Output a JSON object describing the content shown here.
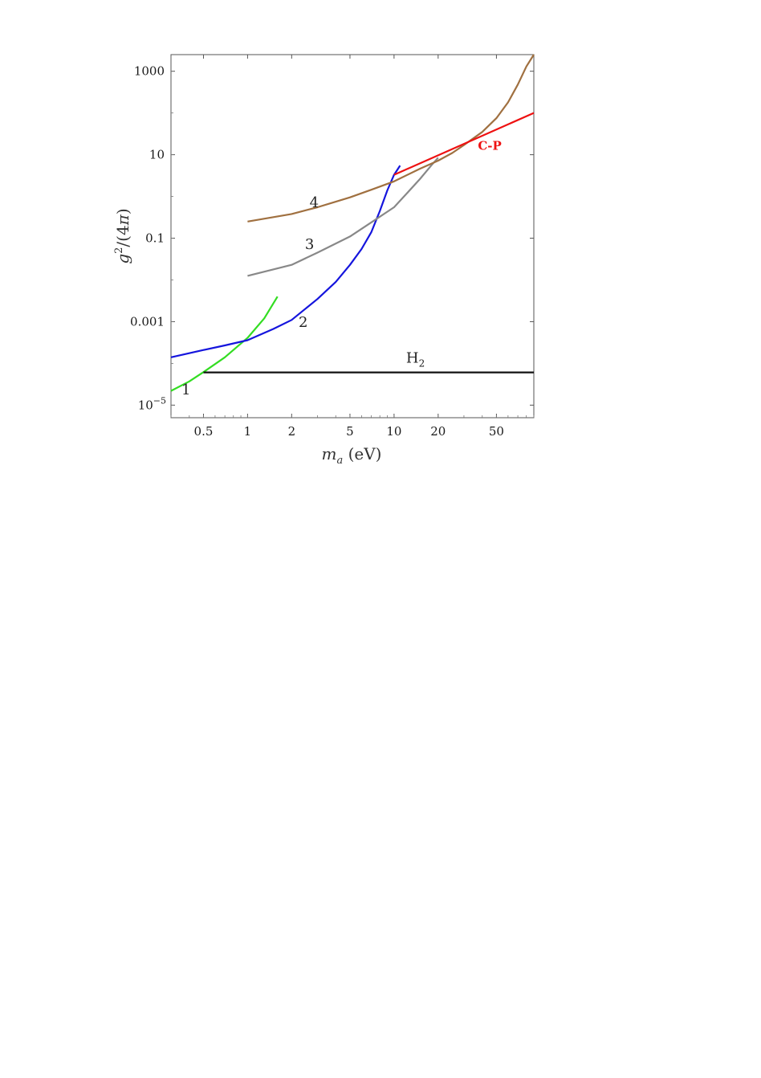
{
  "chart_data": {
    "type": "line",
    "title": "",
    "xlabel": "m_a (eV)",
    "ylabel": "g^2/(4π)",
    "xscale": "log",
    "yscale": "log",
    "xlim": [
      0.3,
      90
    ],
    "ylim": [
      5e-06,
      2500
    ],
    "grid": false,
    "x_ticks": [
      {
        "value": 0.5,
        "label": "0.5"
      },
      {
        "value": 1,
        "label": "1"
      },
      {
        "value": 2,
        "label": "2"
      },
      {
        "value": 5,
        "label": "5"
      },
      {
        "value": 10,
        "label": "10"
      },
      {
        "value": 20,
        "label": "20"
      },
      {
        "value": 50,
        "label": "50"
      }
    ],
    "y_ticks": [
      {
        "value": 1e-05,
        "label": "10",
        "sup": "−5"
      },
      {
        "value": 0.001,
        "label": "0.001",
        "sup": ""
      },
      {
        "value": 0.1,
        "label": "0.1",
        "sup": ""
      },
      {
        "value": 10,
        "label": "10",
        "sup": ""
      },
      {
        "value": 1000,
        "label": "1000",
        "sup": ""
      }
    ],
    "series": [
      {
        "name": "1",
        "color": "#33dd22",
        "points": [
          [
            0.3,
            2.2e-05
          ],
          [
            0.4,
            3.7e-05
          ],
          [
            0.5,
            6.2e-05
          ],
          [
            0.7,
            0.00014
          ],
          [
            1.0,
            0.00041
          ],
          [
            1.3,
            0.0012
          ],
          [
            1.6,
            0.004
          ]
        ]
      },
      {
        "name": "2",
        "color": "#1515dd",
        "points": [
          [
            0.3,
            0.00014
          ],
          [
            0.5,
            0.00021
          ],
          [
            0.7,
            0.00027
          ],
          [
            1.0,
            0.00036
          ],
          [
            1.5,
            0.00067
          ],
          [
            2.0,
            0.0011
          ],
          [
            3.0,
            0.0035
          ],
          [
            4.0,
            0.009
          ],
          [
            5.0,
            0.023
          ],
          [
            6.0,
            0.055
          ],
          [
            7.0,
            0.14
          ],
          [
            8.0,
            0.45
          ],
          [
            9.0,
            1.4
          ],
          [
            10.0,
            3.3
          ],
          [
            11.0,
            5.5
          ]
        ]
      },
      {
        "name": "3",
        "color": "#888888",
        "points": [
          [
            1.0,
            0.0125
          ],
          [
            2.0,
            0.023
          ],
          [
            3.0,
            0.045
          ],
          [
            5.0,
            0.11
          ],
          [
            7.0,
            0.24
          ],
          [
            10.0,
            0.55
          ],
          [
            12.0,
            1.1
          ],
          [
            15.0,
            2.6
          ],
          [
            18.0,
            5.6
          ],
          [
            20.0,
            8.5
          ]
        ]
      },
      {
        "name": "4",
        "color": "#a07040",
        "points": [
          [
            1.0,
            0.25
          ],
          [
            2.0,
            0.38
          ],
          [
            3.0,
            0.55
          ],
          [
            5.0,
            0.95
          ],
          [
            7.0,
            1.45
          ],
          [
            10.0,
            2.3
          ],
          [
            15.0,
            4.6
          ],
          [
            20.0,
            7.2
          ],
          [
            25.0,
            11.0
          ],
          [
            30.0,
            17.0
          ],
          [
            40.0,
            35.0
          ],
          [
            50.0,
            75.0
          ],
          [
            60.0,
            180.0
          ],
          [
            70.0,
            480.0
          ],
          [
            80.0,
            1300.0
          ],
          [
            90.0,
            2500.0
          ]
        ]
      },
      {
        "name": "C-P",
        "color": "#ee1111",
        "points": [
          [
            10.0,
            3.3
          ],
          [
            90.0,
            100.0
          ]
        ]
      },
      {
        "name": "H2",
        "color": "#111111",
        "points": [
          [
            0.5,
            6.1e-05
          ],
          [
            90.0,
            6.1e-05
          ]
        ]
      }
    ],
    "annotations": [
      {
        "text": "1",
        "x": 0.38,
        "y": 1.8e-05,
        "color": "#222222"
      },
      {
        "text": "2",
        "x": 2.4,
        "y": 0.00075,
        "color": "#222222"
      },
      {
        "text": "3",
        "x": 2.65,
        "y": 0.055,
        "color": "#222222"
      },
      {
        "text": "4",
        "x": 2.85,
        "y": 0.55,
        "color": "#222222"
      },
      {
        "text": "C-P",
        "x": 45.0,
        "y": 13.0,
        "color": "#ee1111"
      },
      {
        "text": "H",
        "sub": "2",
        "x": 14.0,
        "y": 0.000105,
        "color": "#222222"
      }
    ]
  }
}
